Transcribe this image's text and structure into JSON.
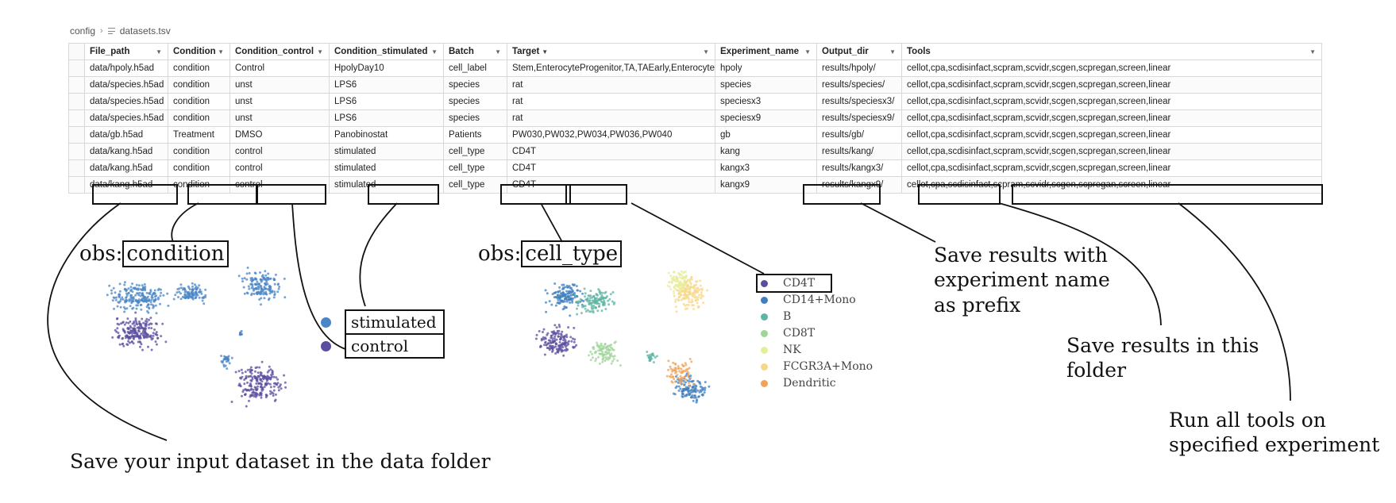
{
  "breadcrumb": {
    "folder": "config",
    "file": "datasets.tsv"
  },
  "table": {
    "columns": [
      "File_path",
      "Condition",
      "Condition_control",
      "Condition_stimulated",
      "Batch",
      "Target",
      "Experiment_name",
      "Output_dir",
      "Tools"
    ],
    "rows": [
      [
        "data/hpoly.h5ad",
        "condition",
        "Control",
        "HpolyDay10",
        "cell_label",
        "Stem,EnterocyteProgenitor,TA,TAEarly,Enterocyte",
        "hpoly",
        "results/hpoly/",
        "cellot,cpa,scdisinfact,scpram,scvidr,scgen,scpregan,screen,linear"
      ],
      [
        "data/species.h5ad",
        "condition",
        "unst",
        "LPS6",
        "species",
        "rat",
        "species",
        "results/species/",
        "cellot,cpa,scdisinfact,scpram,scvidr,scgen,scpregan,screen,linear"
      ],
      [
        "data/species.h5ad",
        "condition",
        "unst",
        "LPS6",
        "species",
        "rat",
        "speciesx3",
        "results/speciesx3/",
        "cellot,cpa,scdisinfact,scpram,scvidr,scgen,scpregan,screen,linear"
      ],
      [
        "data/species.h5ad",
        "condition",
        "unst",
        "LPS6",
        "species",
        "rat",
        "speciesx9",
        "results/speciesx9/",
        "cellot,cpa,scdisinfact,scpram,scvidr,scgen,scpregan,screen,linear"
      ],
      [
        "data/gb.h5ad",
        "Treatment",
        "DMSO",
        "Panobinostat",
        "Patients",
        "PW030,PW032,PW034,PW036,PW040",
        "gb",
        "results/gb/",
        "cellot,cpa,scdisinfact,scpram,scvidr,scgen,scpregan,screen,linear"
      ],
      [
        "data/kang.h5ad",
        "condition",
        "control",
        "stimulated",
        "cell_type",
        "CD4T",
        "kang",
        "results/kang/",
        "cellot,cpa,scdisinfact,scpram,scvidr,scgen,scpregan,screen,linear"
      ],
      [
        "data/kang.h5ad",
        "condition",
        "control",
        "stimulated",
        "cell_type",
        "CD4T",
        "kangx3",
        "results/kangx3/",
        "cellot,cpa,scdisinfact,scpram,scvidr,scgen,scpregan,screen,linear"
      ],
      [
        "data/kang.h5ad",
        "condition",
        "control",
        "stimulated",
        "cell_type",
        "CD4T",
        "kangx9",
        "results/kangx9/",
        "cellot,cpa,scdisinfact,scpram,scvidr,scgen,scpregan,screen,linear"
      ]
    ]
  },
  "annotations": {
    "obs_prefix": "obs:",
    "obs_condition": "condition",
    "obs_cell_type": "cell_type",
    "save_input": "Save your input dataset in the data folder",
    "save_prefix": [
      "Save results with",
      "experiment name",
      "as prefix"
    ],
    "save_folder": [
      "Save results in this",
      "folder"
    ],
    "run_tools": [
      "Run all tools on",
      "specified experiment"
    ]
  },
  "umap_condition": {
    "legend": [
      {
        "label": "stimulated",
        "color": "#4a86c5"
      },
      {
        "label": "control",
        "color": "#5b4ea0"
      }
    ]
  },
  "umap_celltype": {
    "legend": [
      {
        "label": "CD4T",
        "color": "#5b4ea0"
      },
      {
        "label": "CD14+Mono",
        "color": "#3f7fbf"
      },
      {
        "label": "B",
        "color": "#5fb4a4"
      },
      {
        "label": "CD8T",
        "color": "#9fd49a"
      },
      {
        "label": "NK",
        "color": "#e4ef9a"
      },
      {
        "label": "FCGR3A+Mono",
        "color": "#f7d88a"
      },
      {
        "label": "Dendritic",
        "color": "#f0a259"
      }
    ]
  }
}
